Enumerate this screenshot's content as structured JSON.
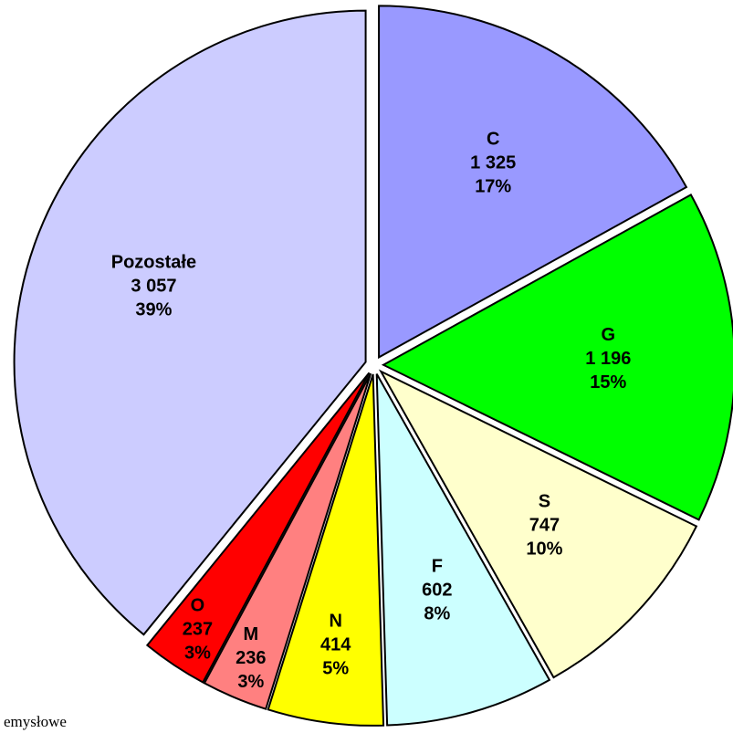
{
  "chart_data": {
    "type": "pie",
    "categories": [
      "C",
      "G",
      "S",
      "F",
      "N",
      "M",
      "O",
      "Pozostałe"
    ],
    "values": [
      1325,
      1196,
      747,
      602,
      414,
      236,
      237,
      3057
    ],
    "value_labels": [
      "1 325",
      "1 196",
      "747",
      "602",
      "414",
      "236",
      "237",
      "3 057"
    ],
    "percent_labels": [
      "17%",
      "15%",
      "10%",
      "8%",
      "5%",
      "3%",
      "3%",
      "39%"
    ],
    "colors": [
      "#9999ff",
      "#00ff00",
      "#ffffcc",
      "#ccffff",
      "#ffff00",
      "#ff8080",
      "#ff0000",
      "#ccccff"
    ],
    "footnote": "emysłowe"
  }
}
